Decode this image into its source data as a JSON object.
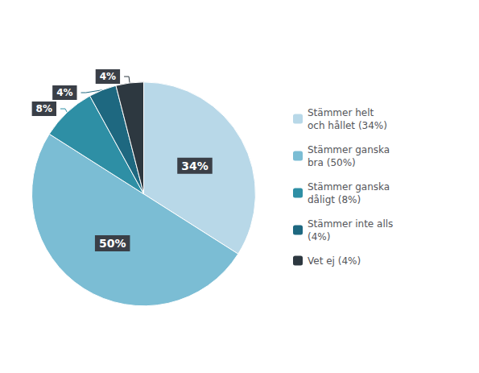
{
  "chart_data": {
    "type": "pie",
    "categories": [
      "Stämmer helt\noch hållet (34%)",
      "Stämmer ganska\nbra (50%)",
      "Stämmer ganska\ndåligt (8%)",
      "Stämmer inte alls\n(4%)",
      "Vet ej (4%)"
    ],
    "values": [
      34,
      50,
      8,
      4,
      4
    ],
    "value_labels": [
      "34%",
      "50%",
      "8%",
      "4%",
      "4%"
    ],
    "colors": [
      "#b8d8e8",
      "#7bbdd4",
      "#2e8fa5",
      "#1e6880",
      "#2d3840"
    ],
    "data_labels": true,
    "legend": "right"
  }
}
